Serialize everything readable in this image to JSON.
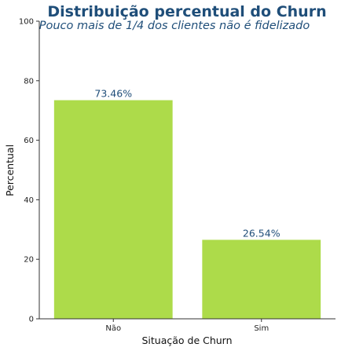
{
  "chart_data": {
    "type": "bar",
    "title": "Distribuição percentual do Churn",
    "subtitle": "Pouco mais de 1/4 dos clientes não é fidelizado",
    "xlabel": "Situação de Churn",
    "ylabel": "Percentual",
    "categories": [
      "Não",
      "Sim"
    ],
    "values": [
      73.46,
      26.54
    ],
    "data_labels": [
      "73.46%",
      "26.54%"
    ],
    "ylim": [
      0,
      100
    ],
    "yticks": [
      0,
      20,
      40,
      60,
      80,
      100
    ],
    "ytick_labels": [
      "0",
      "20",
      "40",
      "60",
      "80",
      "100"
    ],
    "grid": false,
    "legend": "none"
  },
  "colors": {
    "bar": "#addb4a",
    "title": "#1f4e79",
    "data_label": "#1f4e79",
    "axis": "#333333"
  }
}
